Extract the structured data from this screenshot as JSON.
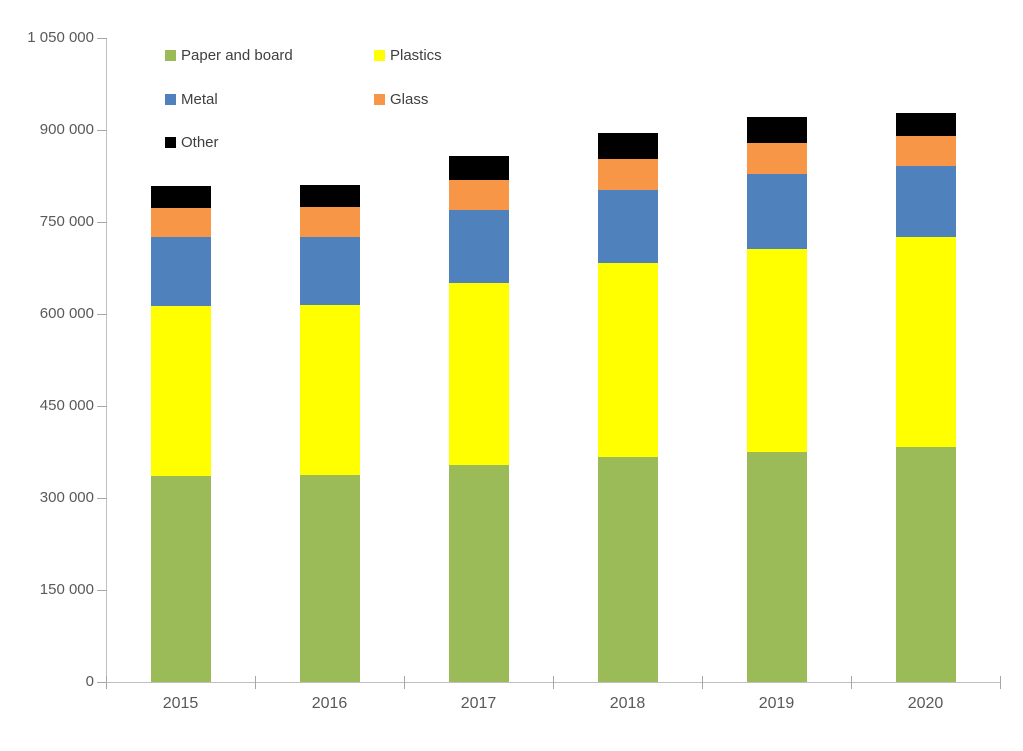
{
  "chart_data": {
    "type": "bar",
    "stacked": true,
    "title": "",
    "categories": [
      "2015",
      "2016",
      "2017",
      "2018",
      "2019",
      "2020"
    ],
    "series": [
      {
        "name": "Paper and board",
        "color": "#9bbb59",
        "values": [
          336000,
          337000,
          354000,
          367000,
          375000,
          383000
        ]
      },
      {
        "name": "Plastics",
        "color": "#ffff00",
        "values": [
          277000,
          277000,
          297000,
          316000,
          331000,
          342000
        ]
      },
      {
        "name": "Metal",
        "color": "#4f81bd",
        "values": [
          113000,
          111000,
          119000,
          119000,
          122000,
          116000
        ]
      },
      {
        "name": "Glass",
        "color": "#f79646",
        "values": [
          47000,
          49000,
          49000,
          51000,
          51000,
          49000
        ]
      },
      {
        "name": "Other",
        "color": "#000000",
        "values": [
          36000,
          37000,
          39000,
          42000,
          42000,
          38000
        ]
      }
    ],
    "totals": [
      809000,
      811000,
      858000,
      895000,
      921000,
      928000
    ],
    "yaxis": {
      "min": 0,
      "max": 1050000,
      "step": 150000,
      "tick_labels": [
        "0",
        "150 000",
        "300 000",
        "450 000",
        "600 000",
        "750 000",
        "900 000",
        "1 050 000"
      ]
    },
    "xlabel": "",
    "ylabel": "",
    "grid": false,
    "legend": {
      "position": "top-left-inside",
      "columns": 2,
      "order": [
        "Paper and board",
        "Plastics",
        "Metal",
        "Glass",
        "Other"
      ]
    }
  },
  "colors": {
    "background": "#ffffff",
    "axis_line": "#bfbfbf",
    "tick_mark": "#a6a6a6",
    "axis_label": "#595959",
    "legend_text": "#404040"
  }
}
